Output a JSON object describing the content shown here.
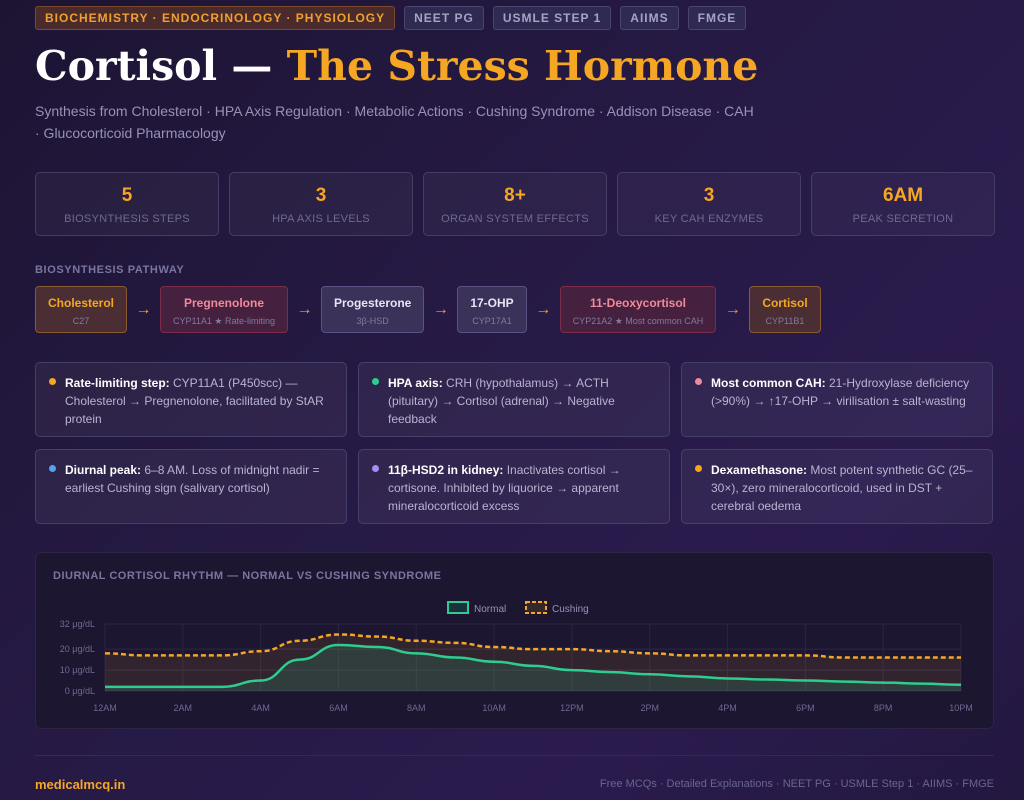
{
  "tags": [
    {
      "label": "BIOCHEMISTRY · ENDOCRINOLOGY · PHYSIOLOGY",
      "primary": true
    },
    {
      "label": "NEET PG"
    },
    {
      "label": "USMLE STEP 1"
    },
    {
      "label": "AIIMS"
    },
    {
      "label": "FMGE"
    }
  ],
  "title": {
    "main": "Cortisol — ",
    "accent": "The Stress Hormone"
  },
  "subtitle": "Synthesis from Cholesterol · HPA Axis Regulation · Metabolic Actions · Cushing Syndrome · Addison Disease · CAH · Glucocorticoid Pharmacology",
  "stats": [
    {
      "value": "5",
      "label": "BIOSYNTHESIS STEPS"
    },
    {
      "value": "3",
      "label": "HPA AXIS LEVELS"
    },
    {
      "value": "8+",
      "label": "ORGAN SYSTEM EFFECTS"
    },
    {
      "value": "3",
      "label": "KEY CAH ENZYMES"
    },
    {
      "value": "6AM",
      "label": "PEAK SECRETION"
    }
  ],
  "pathway": {
    "heading": "BIOSYNTHESIS PATHWAY",
    "arrow": "→",
    "steps": [
      {
        "name": "Cholesterol",
        "sub": "C27",
        "style": "or"
      },
      {
        "name": "Pregnenolone",
        "sub": "CYP11A1 ★ Rate-limiting",
        "style": "red"
      },
      {
        "name": "Progesterone",
        "sub": "3β-HSD",
        "style": "pu"
      },
      {
        "name": "17-OHP",
        "sub": "CYP17A1",
        "style": "pu"
      },
      {
        "name": "11-Deoxycortisol",
        "sub": "CYP21A2 ★ Most common CAH",
        "style": "red"
      },
      {
        "name": "Cortisol",
        "sub": "CYP11B1",
        "style": "or"
      }
    ]
  },
  "facts": [
    {
      "title": "Rate-limiting step:",
      "text": " CYP11A1 (P450scc) — Cholesterol → Pregnenolone, facilitated by StAR protein",
      "color": "#f5a623"
    },
    {
      "title": "HPA axis:",
      "text": " CRH (hypothalamus) → ACTH (pituitary) → Cortisol (adrenal) → Negative feedback",
      "color": "#2ecc8f"
    },
    {
      "title": "Most common CAH:",
      "text": " 21-Hydroxylase deficiency (>90%) → ↑17-OHP → virilisation ± salt-wasting",
      "color": "#f08a9a"
    },
    {
      "title": "Diurnal peak:",
      "text": " 6–8 AM. Loss of midnight nadir = earliest Cushing sign (salivary cortisol)",
      "color": "#5aa0f0"
    },
    {
      "title": "11β-HSD2 in kidney:",
      "text": " Inactivates cortisol → cortisone. Inhibited by liquorice → apparent mineralocorticoid excess",
      "color": "#a78bfa"
    },
    {
      "title": "Dexamethasone:",
      "text": " Most potent synthetic GC (25–30×), zero mineralocorticoid, used in DST + cerebral oedema",
      "color": "#f5a623"
    }
  ],
  "chart_data": {
    "type": "line",
    "title": "DIURNAL CORTISOL RHYTHM — NORMAL VS CUSHING SYNDROME",
    "x": [
      "12AM",
      "1AM",
      "2AM",
      "3AM",
      "4AM",
      "5AM",
      "6AM",
      "7AM",
      "8AM",
      "9AM",
      "10AM",
      "11AM",
      "12PM",
      "1PM",
      "2PM",
      "3PM",
      "4PM",
      "5PM",
      "6PM",
      "7PM",
      "8PM",
      "9PM",
      "10PM"
    ],
    "x_tick_labels": [
      "12AM",
      "2AM",
      "4AM",
      "6AM",
      "8AM",
      "10AM",
      "12PM",
      "2PM",
      "4PM",
      "6PM",
      "8PM",
      "10PM"
    ],
    "y_tick_labels": [
      "0 μg/dL",
      "10 μg/dL",
      "20 μg/dL",
      "32 μg/dL"
    ],
    "y_ticks": [
      0,
      10,
      20,
      32
    ],
    "ylim": [
      0,
      32
    ],
    "grid": true,
    "legend": "top-center",
    "series": [
      {
        "name": "Normal",
        "color": "#2ecc8f",
        "dashed": false,
        "values": [
          2,
          2,
          2,
          2,
          5,
          15,
          22,
          21,
          18,
          16,
          14,
          12,
          10,
          9,
          8,
          7,
          6,
          5.5,
          5,
          4.5,
          4,
          3.5,
          3
        ]
      },
      {
        "name": "Cushing",
        "color": "#f5a623",
        "dashed": true,
        "values": [
          18,
          17,
          17,
          17,
          19,
          24,
          27,
          26,
          24,
          23,
          21,
          20,
          20,
          19,
          18,
          17,
          17,
          17,
          17,
          16,
          16,
          16,
          16
        ]
      }
    ]
  },
  "footer": {
    "brand": "medicalmcq.in",
    "text": "Free MCQs · Detailed Explanations · NEET PG · USMLE Step 1 · AIIMS · FMGE"
  }
}
